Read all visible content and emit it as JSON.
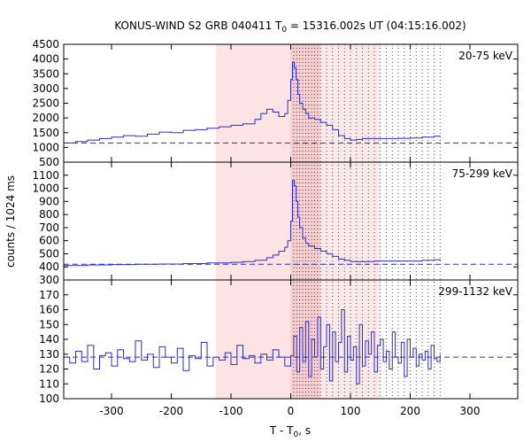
{
  "chart_data": {
    "type": "line",
    "title_prefix": "KONUS-WIND S2 GRB 040411 T",
    "title_sub": "0",
    "title_suffix": " = 15316.002s UT (04:15:16.002)",
    "xlabel_prefix": "T - T",
    "xlabel_sub": "0",
    "xlabel_suffix": ", s",
    "ylabel": "counts / 1024 ms",
    "xlim": [
      -380,
      380
    ],
    "xticks": [
      -300,
      -200,
      -100,
      0,
      100,
      200,
      300
    ],
    "shade_ranges": [
      [
        -125,
        0,
        "#fde4e4"
      ],
      [
        0,
        50,
        "#f7cccc"
      ],
      [
        50,
        150,
        "#fbe8e8"
      ]
    ],
    "dotted_lines": [
      5,
      10,
      15,
      20,
      25,
      30,
      35,
      40,
      45,
      50,
      60,
      70,
      80,
      90,
      100,
      110,
      120,
      130,
      140,
      150,
      160,
      170,
      180,
      190,
      200,
      210,
      220,
      230,
      240,
      250
    ],
    "panels": [
      {
        "label": "20-75 keV",
        "ylim": [
          500,
          4500
        ],
        "yticks": [
          500,
          1000,
          1500,
          2000,
          2500,
          3000,
          3500,
          4000,
          4500
        ],
        "background": 1150,
        "series": {
          "x": [
            -380,
            -360,
            -340,
            -320,
            -300,
            -280,
            -260,
            -240,
            -220,
            -200,
            -180,
            -160,
            -140,
            -120,
            -100,
            -80,
            -60,
            -50,
            -40,
            -30,
            -20,
            -10,
            -5,
            0,
            3,
            6,
            9,
            12,
            15,
            20,
            25,
            30,
            40,
            50,
            60,
            70,
            80,
            90,
            100,
            110,
            120,
            140,
            160,
            180,
            200,
            220,
            240,
            250
          ],
          "y": [
            1150,
            1200,
            1250,
            1300,
            1350,
            1400,
            1380,
            1450,
            1520,
            1500,
            1580,
            1600,
            1650,
            1700,
            1750,
            1800,
            1950,
            2150,
            2300,
            2200,
            2050,
            2150,
            2600,
            3300,
            3900,
            3700,
            3300,
            2800,
            2500,
            2300,
            2150,
            2000,
            1950,
            1850,
            1750,
            1600,
            1400,
            1300,
            1250,
            1270,
            1300,
            1300,
            1300,
            1310,
            1320,
            1350,
            1380,
            1400
          ]
        }
      },
      {
        "label": "75-299 keV",
        "ylim": [
          300,
          1200
        ],
        "yticks": [
          300,
          400,
          500,
          600,
          700,
          800,
          900,
          1000,
          1100
        ],
        "background": 420,
        "series": {
          "x": [
            -380,
            -340,
            -300,
            -260,
            -220,
            -180,
            -140,
            -100,
            -80,
            -60,
            -40,
            -30,
            -20,
            -10,
            -5,
            0,
            3,
            6,
            9,
            12,
            15,
            20,
            25,
            30,
            40,
            50,
            60,
            70,
            80,
            90,
            100,
            120,
            140,
            160,
            180,
            200,
            220,
            240,
            250
          ],
          "y": [
            410,
            415,
            418,
            420,
            422,
            425,
            430,
            435,
            440,
            450,
            470,
            490,
            520,
            550,
            600,
            750,
            1060,
            1020,
            900,
            780,
            700,
            620,
            580,
            560,
            540,
            520,
            500,
            480,
            460,
            450,
            440,
            440,
            445,
            445,
            445,
            445,
            450,
            455,
            450
          ]
        }
      },
      {
        "label": "299-1132 keV",
        "ylim": [
          100,
          180
        ],
        "yticks": [
          100,
          110,
          120,
          130,
          140,
          150,
          160,
          170
        ],
        "background": 128,
        "series": {
          "x": [
            -380,
            -370,
            -360,
            -350,
            -340,
            -330,
            -320,
            -310,
            -300,
            -290,
            -280,
            -270,
            -260,
            -250,
            -240,
            -230,
            -220,
            -210,
            -200,
            -190,
            -180,
            -170,
            -160,
            -150,
            -140,
            -130,
            -120,
            -110,
            -100,
            -90,
            -80,
            -70,
            -60,
            -50,
            -40,
            -30,
            -20,
            -10,
            0,
            5,
            10,
            15,
            20,
            25,
            30,
            35,
            40,
            45,
            50,
            55,
            60,
            65,
            70,
            75,
            80,
            85,
            90,
            95,
            100,
            105,
            110,
            115,
            120,
            125,
            130,
            135,
            140,
            145,
            150,
            155,
            160,
            165,
            170,
            175,
            180,
            185,
            190,
            195,
            200,
            205,
            210,
            215,
            220,
            225,
            230,
            235,
            240,
            245,
            250
          ],
          "y": [
            128,
            124,
            132,
            125,
            136,
            120,
            129,
            131,
            122,
            133,
            127,
            125,
            139,
            126,
            130,
            121,
            135,
            128,
            124,
            134,
            119,
            129,
            127,
            138,
            122,
            128,
            126,
            131,
            123,
            136,
            127,
            129,
            124,
            130,
            126,
            133,
            128,
            122,
            129,
            142,
            118,
            148,
            125,
            152,
            115,
            140,
            128,
            155,
            120,
            135,
            150,
            112,
            145,
            125,
            138,
            160,
            118,
            142,
            126,
            135,
            110,
            150,
            122,
            139,
            130,
            145,
            118,
            136,
            140,
            125,
            132,
            120,
            145,
            128,
            124,
            138,
            115,
            140,
            128,
            134,
            122,
            130,
            126,
            132,
            120,
            136,
            127,
            125,
            130
          ]
        }
      }
    ]
  }
}
